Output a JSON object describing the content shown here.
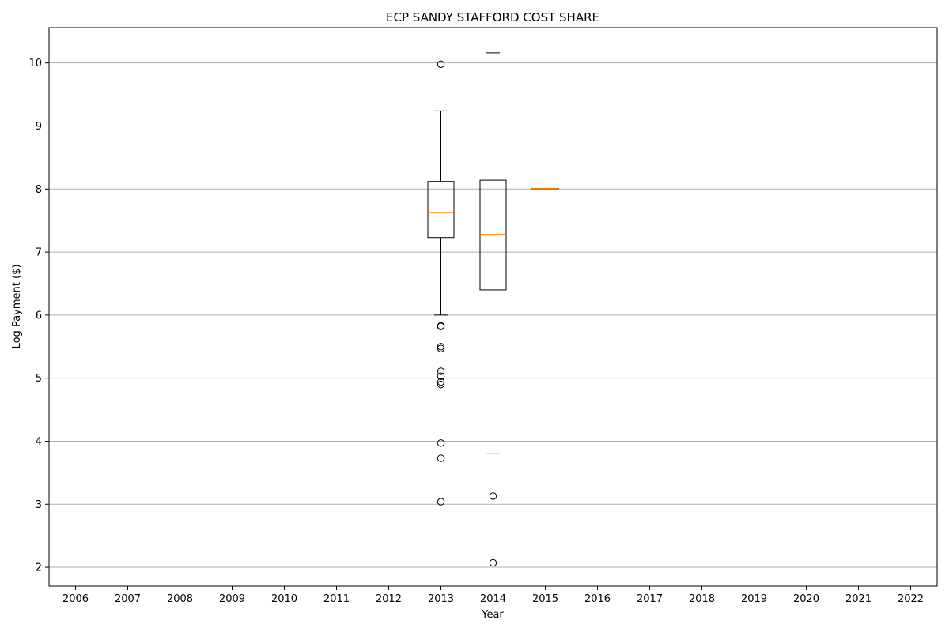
{
  "chart_data": {
    "type": "box",
    "title": "ECP SANDY STAFFORD COST SHARE",
    "xlabel": "Year",
    "ylabel": "Log Payment ($)",
    "categories": [
      "2006",
      "2007",
      "2008",
      "2009",
      "2010",
      "2011",
      "2012",
      "2013",
      "2014",
      "2015",
      "2016",
      "2017",
      "2018",
      "2019",
      "2020",
      "2021",
      "2022"
    ],
    "y_ticks": [
      "2",
      "3",
      "4",
      "5",
      "6",
      "7",
      "8",
      "9",
      "10"
    ],
    "ylim": [
      1.7,
      10.56
    ],
    "grid": "horizontal",
    "colors": {
      "box": "#000000",
      "median": "#ff7f0e",
      "grid": "#b0b0b0"
    },
    "boxes": [
      {
        "category": "2013",
        "whisker_low": 6.0,
        "q1": 7.23,
        "median": 7.63,
        "q3": 8.12,
        "whisker_high": 9.24,
        "outliers": [
          9.98,
          5.83,
          5.82,
          5.5,
          5.47,
          5.11,
          5.03,
          4.94,
          4.9,
          3.97,
          3.73,
          3.04
        ]
      },
      {
        "category": "2014",
        "whisker_low": 3.81,
        "q1": 6.4,
        "median": 7.28,
        "q3": 8.14,
        "whisker_high": 10.16,
        "outliers": [
          3.13,
          2.07
        ]
      },
      {
        "category": "2015",
        "whisker_low": 8.01,
        "q1": 8.01,
        "median": 8.01,
        "q3": 8.01,
        "whisker_high": 8.01,
        "outliers": []
      }
    ]
  }
}
